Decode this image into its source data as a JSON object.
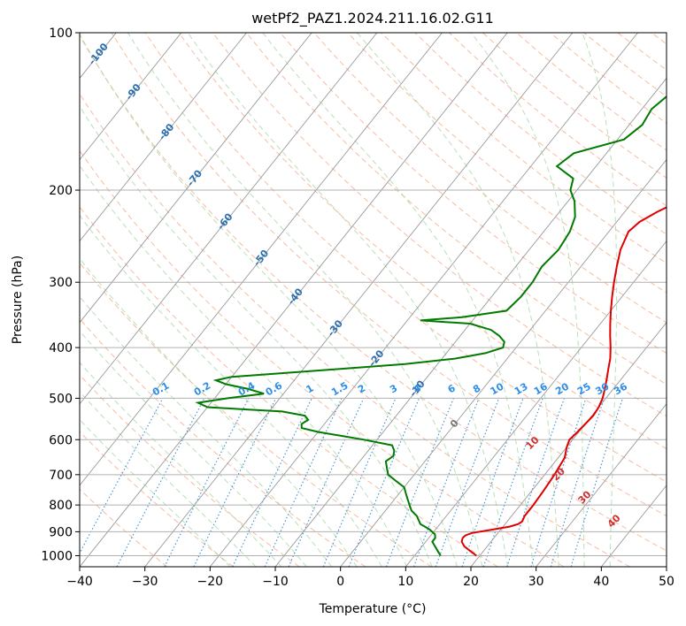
{
  "chart_data": {
    "type": "line",
    "title": "wetPf2_PAZ1.2024.211.16.02.G11",
    "xlabel": "Temperature (°C)",
    "ylabel": "Pressure (hPa)",
    "xlim": [
      -40,
      50
    ],
    "ylim": [
      1050,
      100
    ],
    "y_scale": "log",
    "grid": true,
    "x_ticks": [
      -40,
      -30,
      -20,
      -10,
      0,
      10,
      20,
      30,
      40,
      50
    ],
    "x_tick_labels": [
      "−40",
      "−30",
      "−20",
      "−10",
      "0",
      "10",
      "20",
      "30",
      "40",
      "50"
    ],
    "y_ticks": [
      100,
      200,
      300,
      400,
      500,
      600,
      700,
      800,
      900,
      1000
    ],
    "y_tick_labels": [
      "100",
      "200",
      "300",
      "400",
      "500",
      "600",
      "700",
      "800",
      "900",
      "1000"
    ],
    "colors": {
      "temperature": "#e00000",
      "dewpoint": "#007a00",
      "isotherm": "#999999",
      "dry_adiabat": "#f4a582",
      "moist_adiabat": "#a6d8a6",
      "mixing_ratio": "#3a8fd6",
      "isotherm_label": "#2a6fb0",
      "adiabat_label": "#d03030",
      "mixing_label": "#2d8ee8"
    },
    "series": [
      {
        "key": "temperature",
        "p": [
          1000,
          980,
          960,
          940,
          925,
          915,
          905,
          895,
          880,
          870,
          860,
          840,
          800,
          750,
          700,
          650,
          620,
          600,
          580,
          560,
          540,
          520,
          500,
          480,
          460,
          440,
          420,
          400,
          380,
          360,
          340,
          320,
          300,
          280,
          260,
          240,
          230,
          220,
          210,
          200,
          190,
          180,
          170,
          160,
          150,
          140,
          130,
          120,
          115,
          110,
          105,
          100
        ],
        "t": [
          19.5,
          18.0,
          16.5,
          15.5,
          15.2,
          15.3,
          16.0,
          18.0,
          21.0,
          22.0,
          22.3,
          22.0,
          22.0,
          21.8,
          21.5,
          21.0,
          20.0,
          19.5,
          19.8,
          20.0,
          20.2,
          20.0,
          19.5,
          18.7,
          17.8,
          16.8,
          15.8,
          14.5,
          13.0,
          11.5,
          10.0,
          8.5,
          7.0,
          5.5,
          4.0,
          3.0,
          3.5,
          5.0,
          7.0,
          9.0,
          10.5,
          11.0,
          10.5,
          10.0,
          10.5,
          11.0,
          11.5,
          12.5,
          14.0,
          15.5,
          16.5,
          17.5
        ]
      },
      {
        "key": "dewpoint",
        "p": [
          1000,
          980,
          960,
          940,
          925,
          910,
          890,
          870,
          860,
          840,
          820,
          800,
          780,
          760,
          740,
          720,
          700,
          680,
          660,
          645,
          630,
          615,
          600,
          590,
          580,
          570,
          560,
          550,
          540,
          530,
          525,
          520,
          510,
          500,
          490,
          480,
          470,
          462,
          455,
          450,
          440,
          430,
          420,
          410,
          400,
          390,
          380,
          370,
          360,
          355,
          350,
          340,
          320,
          300,
          280,
          260,
          240,
          225,
          210,
          200,
          190,
          180,
          170,
          160,
          150,
          140,
          130,
          125,
          120,
          115,
          110,
          105,
          100
        ],
        "td": [
          14.0,
          13.0,
          12.0,
          11.0,
          11.0,
          10.5,
          9.0,
          7.0,
          6.5,
          5.5,
          4.0,
          3.0,
          2.0,
          1.0,
          0.0,
          -2.0,
          -4.0,
          -5.0,
          -6.0,
          -5.5,
          -6.0,
          -7.0,
          -12.0,
          -16.0,
          -20.0,
          -23.0,
          -23.5,
          -23.0,
          -24.0,
          -28.0,
          -34.0,
          -40.0,
          -42.0,
          -38.0,
          -33.0,
          -36.0,
          -40.0,
          -42.0,
          -40.0,
          -35.0,
          -25.0,
          -15.0,
          -8.0,
          -4.0,
          -2.0,
          -2.5,
          -4.0,
          -6.0,
          -10.0,
          -18.0,
          -12.0,
          -6.0,
          -5.5,
          -5.5,
          -6.0,
          -5.5,
          -6.0,
          -7.0,
          -9.0,
          -11.0,
          -12.0,
          -16.0,
          -15.0,
          -9.0,
          -8.0,
          -8.5,
          -7.5,
          -6.0,
          -4.0,
          -1.0,
          1.5,
          2.5,
          3.0
        ]
      }
    ],
    "annotations": {
      "isotherm_labels": [
        "-100",
        "-90",
        "-80",
        "-70",
        "-60",
        "-50",
        "-40",
        "-30",
        "-20",
        "-10",
        "0"
      ],
      "adiabat_labels": [
        "10",
        "20",
        "30",
        "40"
      ],
      "mixing_ratio_labels": [
        "0.1",
        "0.2",
        "0.4",
        "0.6",
        "1",
        "1.5",
        "2",
        "3",
        "4",
        "6",
        "8",
        "10",
        "13",
        "16",
        "20",
        "25",
        "30",
        "36"
      ]
    }
  }
}
